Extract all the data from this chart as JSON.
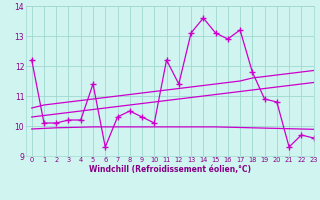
{
  "x": [
    0,
    1,
    2,
    3,
    4,
    5,
    6,
    7,
    8,
    9,
    10,
    11,
    12,
    13,
    14,
    15,
    16,
    17,
    18,
    19,
    20,
    21,
    22,
    23
  ],
  "line1": [
    12.2,
    10.1,
    10.1,
    10.2,
    10.2,
    11.4,
    9.3,
    10.3,
    10.5,
    10.3,
    10.1,
    12.2,
    11.4,
    13.1,
    13.6,
    13.1,
    12.9,
    13.2,
    11.8,
    10.9,
    10.8,
    9.3,
    9.7,
    9.6
  ],
  "line2": [
    10.6,
    10.7,
    10.75,
    10.8,
    10.85,
    10.9,
    10.95,
    11.0,
    11.05,
    11.1,
    11.15,
    11.2,
    11.25,
    11.3,
    11.35,
    11.4,
    11.45,
    11.5,
    11.6,
    11.65,
    11.7,
    11.75,
    11.8,
    11.85
  ],
  "line3": [
    10.3,
    10.35,
    10.4,
    10.45,
    10.5,
    10.55,
    10.6,
    10.65,
    10.7,
    10.75,
    10.8,
    10.85,
    10.9,
    10.95,
    11.0,
    11.05,
    11.1,
    11.15,
    11.2,
    11.25,
    11.3,
    11.35,
    11.4,
    11.45
  ],
  "line4": [
    9.9,
    9.92,
    9.94,
    9.95,
    9.96,
    9.97,
    9.97,
    9.97,
    9.97,
    9.97,
    9.97,
    9.97,
    9.97,
    9.97,
    9.97,
    9.97,
    9.96,
    9.95,
    9.94,
    9.93,
    9.92,
    9.91,
    9.9,
    9.89
  ],
  "bg_color": "#d0f5f0",
  "line_color": "#cc00cc",
  "grid_color": "#a0d8d0",
  "xlabel": "Windchill (Refroidissement éolien,°C)",
  "ylim": [
    9,
    14
  ],
  "xlim": [
    -0.5,
    23
  ],
  "yticks": [
    9,
    10,
    11,
    12,
    13,
    14
  ],
  "xticks": [
    0,
    1,
    2,
    3,
    4,
    5,
    6,
    7,
    8,
    9,
    10,
    11,
    12,
    13,
    14,
    15,
    16,
    17,
    18,
    19,
    20,
    21,
    22,
    23
  ]
}
